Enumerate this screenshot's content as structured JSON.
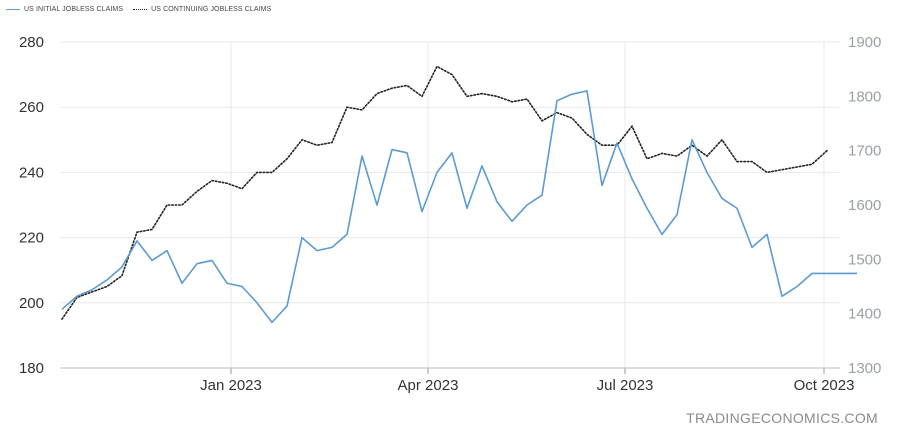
{
  "legend": {
    "initial_label": "US INITIAL JOBLESS CLAIMS",
    "continuing_label": "US CONTINUING JOBLESS CLAIMS"
  },
  "watermark": "TRADINGECONOMICS.COM",
  "chart_data": {
    "type": "line",
    "x_tick_labels": [
      "Jan 2023",
      "Apr 2023",
      "Jul 2023",
      "Oct 2023"
    ],
    "y_left_ticks": [
      180,
      200,
      220,
      240,
      260,
      280
    ],
    "y_right_ticks": [
      1300,
      1400,
      1500,
      1600,
      1700,
      1800,
      1900
    ],
    "y_left_lim": [
      180,
      280
    ],
    "y_right_lim": [
      1300,
      1900
    ],
    "grid": true,
    "legend_position": "top-left",
    "series": [
      {
        "name": "US INITIAL JOBLESS CLAIMS",
        "axis": "left",
        "color": "#5b9bd1",
        "style": "solid",
        "x": [
          0,
          1,
          2,
          3,
          4,
          5,
          6,
          7,
          8,
          9,
          10,
          11,
          12,
          13,
          14,
          15,
          16,
          17,
          18,
          19,
          20,
          21,
          22,
          23,
          24,
          25,
          26,
          27,
          28,
          29,
          30,
          31,
          32,
          33,
          34,
          35,
          36,
          37,
          38,
          39,
          40,
          41,
          42,
          43,
          44,
          45,
          46,
          47,
          48,
          49,
          50,
          51,
          52,
          53
        ],
        "values": [
          198,
          202,
          204,
          207,
          211,
          219,
          213,
          216,
          206,
          212,
          213,
          206,
          205,
          200,
          194,
          199,
          220,
          216,
          217,
          221,
          245,
          230,
          247,
          246,
          228,
          240,
          246,
          229,
          242,
          231,
          225,
          230,
          233,
          262,
          264,
          265,
          236,
          249,
          238,
          229,
          221,
          227,
          250,
          240,
          232,
          229,
          217,
          221,
          202,
          205,
          209,
          209,
          209,
          209
        ]
      },
      {
        "name": "US CONTINUING JOBLESS CLAIMS",
        "axis": "right",
        "color": "#222222",
        "style": "dotted",
        "x": [
          0,
          1,
          2,
          3,
          4,
          5,
          6,
          7,
          8,
          9,
          10,
          11,
          12,
          13,
          14,
          15,
          16,
          17,
          18,
          19,
          20,
          21,
          22,
          23,
          24,
          25,
          26,
          27,
          28,
          29,
          30,
          31,
          32,
          33,
          34,
          35,
          36,
          37,
          38,
          39,
          40,
          41,
          42,
          43,
          44,
          45,
          46,
          47,
          48,
          49,
          50,
          51
        ],
        "values": [
          1390,
          1430,
          1440,
          1450,
          1470,
          1550,
          1555,
          1600,
          1600,
          1625,
          1645,
          1640,
          1630,
          1660,
          1660,
          1685,
          1720,
          1710,
          1715,
          1780,
          1775,
          1805,
          1815,
          1820,
          1800,
          1855,
          1840,
          1800,
          1805,
          1800,
          1790,
          1795,
          1755,
          1770,
          1760,
          1730,
          1710,
          1710,
          1745,
          1685,
          1695,
          1690,
          1710,
          1690,
          1720,
          1680,
          1680,
          1660,
          1665,
          1670,
          1675,
          1700
        ]
      }
    ]
  }
}
